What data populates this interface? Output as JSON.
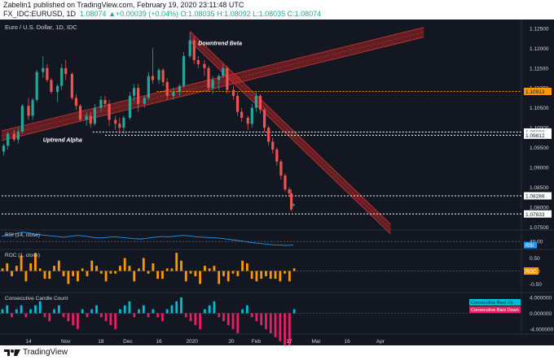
{
  "header": {
    "publisher_line": "Zabelin1 published on TradingView.com, February 19, 2020 23:11:48 UTC",
    "symbol": "FX_IDC:EURUSD, 1D",
    "ohlc": "1.08074  ▲+0.00039 (+0.04%)  O:1.08035  H:1.08092  L:1.08035  C:1.08074"
  },
  "footer": {
    "brand": "TradingView",
    "logo_icon": "tradingview-logo-icon"
  },
  "colors": {
    "background": "#131722",
    "up": "#26a69a",
    "down": "#ef5350",
    "channel": "#c62828",
    "orange": "#ff9800",
    "blue": "#2196f3",
    "pink": "#e91e63",
    "cyan": "#00bcd4"
  },
  "chart_data": [
    {
      "type": "candlestick",
      "title": "Euro / U.S. Dollar, 1D, IDC",
      "y_ticks": [
        "1.12500",
        "1.12000",
        "1.11500",
        "1.11000",
        "1.10500",
        "1.10000",
        "1.09500",
        "1.09000",
        "1.08500",
        "1.08000",
        "1.07500"
      ],
      "x_ticks": [
        "14",
        "Nov",
        "18",
        "Dec",
        "16",
        "2020",
        "20",
        "Feb",
        "17",
        "Mar",
        "16",
        "Apr"
      ],
      "ylim": [
        1.0745,
        1.1268
      ],
      "trendlines": [
        {
          "label": "Uptrend Alpha",
          "from": [
            "2019-10-01",
            1.098
          ],
          "to": [
            "2020-04-22",
            1.124
          ]
        },
        {
          "label": "Downtrend Beta",
          "from": [
            "2019-12-31",
            1.123
          ],
          "to": [
            "2020-04-06",
            1.0745
          ]
        }
      ],
      "levels": [
        {
          "value": 1.10913,
          "label": "1.10913",
          "style": "orange"
        },
        {
          "value": 1.09892,
          "label": "1.09892",
          "style": "white"
        },
        {
          "value": 1.09812,
          "label": "1.09812",
          "style": "white"
        },
        {
          "value": 1.08288,
          "label": "1.08288",
          "style": "white"
        },
        {
          "value": 1.07833,
          "label": "1.07833",
          "style": "white"
        }
      ],
      "candles": [
        [
          "2019-10-02",
          1.094,
          1.096,
          1.093,
          1.0955
        ],
        [
          "2019-10-04",
          1.0955,
          1.099,
          1.0945,
          1.0985
        ],
        [
          "2019-10-07",
          1.0985,
          1.0995,
          1.0965,
          1.097
        ],
        [
          "2019-10-09",
          1.097,
          1.1,
          1.096,
          1.099
        ],
        [
          "2019-10-11",
          1.099,
          1.106,
          1.0985,
          1.1055
        ],
        [
          "2019-10-14",
          1.1055,
          1.1075,
          1.102,
          1.103
        ],
        [
          "2019-10-16",
          1.103,
          1.1075,
          1.102,
          1.107
        ],
        [
          "2019-10-18",
          1.107,
          1.1145,
          1.1065,
          1.114
        ],
        [
          "2019-10-21",
          1.114,
          1.118,
          1.1125,
          1.115
        ],
        [
          "2019-10-23",
          1.115,
          1.116,
          1.1115,
          1.112
        ],
        [
          "2019-10-25",
          1.112,
          1.1125,
          1.1085,
          1.109
        ],
        [
          "2019-10-28",
          1.109,
          1.111,
          1.1065,
          1.1105
        ],
        [
          "2019-10-30",
          1.1105,
          1.116,
          1.1095,
          1.115
        ],
        [
          "2019-11-01",
          1.115,
          1.117,
          1.112,
          1.1135
        ],
        [
          "2019-11-04",
          1.1135,
          1.114,
          1.107,
          1.1075
        ],
        [
          "2019-11-06",
          1.1075,
          1.1085,
          1.1045,
          1.1055
        ],
        [
          "2019-11-08",
          1.1055,
          1.106,
          1.1015,
          1.102
        ],
        [
          "2019-11-11",
          1.102,
          1.104,
          1.1005,
          1.103
        ],
        [
          "2019-11-13",
          1.103,
          1.104,
          1.1,
          1.101
        ],
        [
          "2019-11-15",
          1.101,
          1.106,
          1.1005,
          1.105
        ],
        [
          "2019-11-18",
          1.105,
          1.108,
          1.104,
          1.107
        ],
        [
          "2019-11-20",
          1.107,
          1.108,
          1.105,
          1.106
        ],
        [
          "2019-11-22",
          1.106,
          1.107,
          1.1005,
          1.102
        ],
        [
          "2019-11-25",
          1.102,
          1.103,
          1.0995,
          1.101
        ],
        [
          "2019-11-27",
          1.101,
          1.1025,
          1.0985,
          1.1
        ],
        [
          "2019-11-29",
          1.1,
          1.103,
          1.0985,
          1.1025
        ],
        [
          "2019-12-02",
          1.1025,
          1.109,
          1.102,
          1.108
        ],
        [
          "2019-12-04",
          1.108,
          1.111,
          1.1065,
          1.11
        ],
        [
          "2019-12-06",
          1.11,
          1.111,
          1.104,
          1.106
        ],
        [
          "2019-12-09",
          1.106,
          1.108,
          1.105,
          1.1075
        ],
        [
          "2019-12-11",
          1.1075,
          1.114,
          1.107,
          1.113
        ],
        [
          "2019-12-13",
          1.113,
          1.12,
          1.111,
          1.112
        ],
        [
          "2019-12-16",
          1.112,
          1.115,
          1.111,
          1.1145
        ],
        [
          "2019-12-18",
          1.1145,
          1.115,
          1.1105,
          1.1115
        ],
        [
          "2019-12-20",
          1.1115,
          1.1125,
          1.107,
          1.108
        ],
        [
          "2019-12-23",
          1.108,
          1.11,
          1.107,
          1.109
        ],
        [
          "2019-12-26",
          1.109,
          1.111,
          1.108,
          1.1105
        ],
        [
          "2019-12-28",
          1.1105,
          1.119,
          1.11,
          1.118
        ],
        [
          "2019-12-31",
          1.118,
          1.124,
          1.1175,
          1.122
        ],
        [
          "2020-01-02",
          1.122,
          1.123,
          1.116,
          1.117
        ],
        [
          "2020-01-04",
          1.117,
          1.118,
          1.115,
          1.116
        ],
        [
          "2020-01-07",
          1.116,
          1.117,
          1.113,
          1.115
        ],
        [
          "2020-01-09",
          1.115,
          1.1155,
          1.109,
          1.11
        ],
        [
          "2020-01-11",
          1.11,
          1.113,
          1.1085,
          1.112
        ],
        [
          "2020-01-14",
          1.112,
          1.1135,
          1.1095,
          1.113
        ],
        [
          "2020-01-16",
          1.113,
          1.116,
          1.1125,
          1.115
        ],
        [
          "2020-01-18",
          1.115,
          1.1155,
          1.1085,
          1.1095
        ],
        [
          "2020-01-21",
          1.1095,
          1.1105,
          1.107,
          1.108
        ],
        [
          "2020-01-23",
          1.108,
          1.109,
          1.103,
          1.104
        ],
        [
          "2020-01-25",
          1.104,
          1.105,
          1.1015,
          1.1025
        ],
        [
          "2020-01-28",
          1.1025,
          1.103,
          1.0995,
          1.101
        ],
        [
          "2020-01-30",
          1.101,
          1.106,
          1.1,
          1.105
        ],
        [
          "2020-02-01",
          1.105,
          1.109,
          1.104,
          1.108
        ],
        [
          "2020-02-03",
          1.108,
          1.1085,
          1.1035,
          1.1045
        ],
        [
          "2020-02-05",
          1.1045,
          1.105,
          1.099,
          1.1
        ],
        [
          "2020-02-07",
          1.1,
          1.1005,
          1.0955,
          1.0965
        ],
        [
          "2020-02-09",
          1.0965,
          1.0975,
          1.0935,
          1.0945
        ],
        [
          "2020-02-11",
          1.0945,
          1.095,
          1.0905,
          1.0915
        ],
        [
          "2020-02-13",
          1.0915,
          1.092,
          1.087,
          1.088
        ],
        [
          "2020-02-15",
          1.088,
          1.0885,
          1.084,
          1.0845
        ],
        [
          "2020-02-17",
          1.0845,
          1.085,
          1.0825,
          1.0835
        ],
        [
          "2020-02-18",
          1.0835,
          1.0845,
          1.079,
          1.0795
        ],
        [
          "2020-02-19",
          1.08035,
          1.08092,
          1.08035,
          1.08074
        ]
      ]
    },
    {
      "type": "line",
      "title": "RSI (14, close)",
      "y_ticks": [
        "40.00"
      ],
      "last_value_label": "RSI",
      "values": [
        55,
        58,
        62,
        66,
        64,
        60,
        58,
        56,
        54,
        52,
        55,
        57,
        55,
        52,
        50,
        51,
        53,
        52,
        50,
        48,
        47,
        49,
        52,
        54,
        53,
        55,
        57,
        56,
        53,
        52,
        51,
        50,
        48,
        45,
        43,
        40,
        37,
        35,
        33,
        31,
        30,
        29,
        30
      ]
    },
    {
      "type": "bar",
      "title": "ROC (1, close)",
      "y_ticks": [
        "0.50",
        "0.00",
        "-0.50"
      ],
      "legend_label": "ROC",
      "values": [
        0.1,
        0.3,
        -0.2,
        0.2,
        0.6,
        -0.4,
        0.3,
        0.7,
        0.1,
        -0.3,
        -0.3,
        0.2,
        0.4,
        -0.2,
        -0.5,
        -0.2,
        -0.4,
        0.1,
        -0.2,
        0.4,
        0.2,
        -0.1,
        -0.4,
        -0.1,
        -0.1,
        0.2,
        0.5,
        0.2,
        -0.4,
        0.1,
        0.5,
        -0.1,
        0.3,
        -0.3,
        -0.3,
        0.1,
        0.1,
        0.7,
        0.4,
        -0.4,
        -0.1,
        -0.2,
        -0.5,
        0.2,
        0.1,
        0.2,
        -0.5,
        -0.2,
        -0.4,
        -0.1,
        -0.2,
        0.4,
        0.3,
        -0.3,
        -0.4,
        -0.3,
        -0.2,
        -0.3,
        -0.3,
        -0.4,
        -0.1,
        -0.4,
        0.1
      ]
    },
    {
      "type": "bar",
      "title": "Consecutive Candle Count",
      "y_ticks": [
        "4.000000",
        "0.000000",
        "-4.000000"
      ],
      "series": [
        {
          "name": "Consecutive Bars Up"
        },
        {
          "name": "Consecutive Bars Down"
        }
      ],
      "values": [
        1,
        2,
        -1,
        1,
        2,
        -1,
        1,
        2,
        3,
        -1,
        -2,
        1,
        2,
        -1,
        -2,
        -3,
        -4,
        1,
        -1,
        1,
        2,
        -1,
        -2,
        -3,
        -4,
        1,
        2,
        3,
        -1,
        1,
        2,
        -1,
        1,
        -1,
        -2,
        1,
        2,
        3,
        4,
        -1,
        -2,
        -3,
        -4,
        1,
        2,
        3,
        -1,
        -2,
        -3,
        -4,
        -5,
        1,
        2,
        -1,
        -2,
        -3,
        -4,
        -5,
        -6,
        -7,
        -8,
        -9,
        1
      ]
    }
  ]
}
